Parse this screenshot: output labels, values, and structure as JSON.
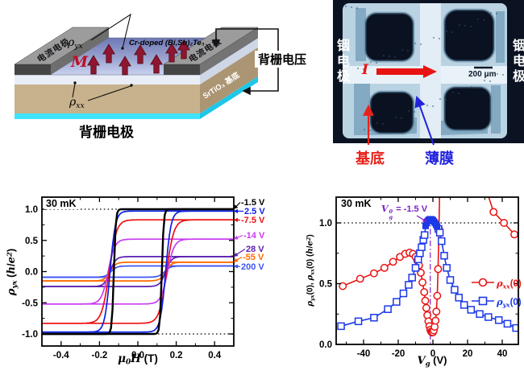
{
  "figure": {
    "background": "#ffffff"
  },
  "panel_schematic": {
    "film_compound_label": "Cr-doped (Bi,Sb)₂Te₃",
    "magnetization_label": "M",
    "magnetization_color": "#c01022",
    "hall_resistivity_parts": [
      [
        "i",
        "ρ"
      ],
      [
        "sub",
        "yx"
      ]
    ],
    "longitudinal_resistivity_parts": [
      [
        "i",
        "ρ"
      ],
      [
        "sub",
        "xx"
      ]
    ],
    "current_electrode_label": "电流电极",
    "substrate_label": "SrTiO₃ 基底",
    "back_gate_electrode_label": "背栅电极",
    "back_gate_voltage_label": "背栅电压"
  },
  "panel_micrograph": {
    "left_electrode_label": "铟电极",
    "right_electrode_label": "铟电极",
    "current_label": "I",
    "current_arrow_color": "#e81414",
    "scale_bar_label": "200 μm",
    "substrate_label": "基底",
    "substrate_label_color": "#e8221a",
    "film_label": "薄膜",
    "film_label_color": "#2222dd"
  },
  "chart_data": [
    {
      "id": "hysteresis-loops",
      "type": "line",
      "title": "30 mK",
      "xlabel_rich": [
        [
          "i",
          "μ"
        ],
        [
          "sub",
          "0"
        ],
        [
          "i",
          "H"
        ],
        [
          "t",
          " (T)"
        ]
      ],
      "ylabel_rich": [
        [
          "i",
          "ρ"
        ],
        [
          "sub",
          "yx"
        ],
        [
          "t",
          " ("
        ],
        [
          "i",
          "h"
        ],
        [
          "t",
          "/"
        ],
        [
          "i",
          "e"
        ],
        [
          "sup",
          "2"
        ],
        [
          "t",
          ")"
        ]
      ],
      "xlim": [
        -0.5,
        0.5
      ],
      "ylim": [
        -1.19,
        1.19
      ],
      "xticks": [
        {
          "v": -0.4,
          "l": "-0.4"
        },
        {
          "v": -0.2,
          "l": "-0.2"
        },
        {
          "v": 0,
          "l": "0.0"
        },
        {
          "v": 0.2,
          "l": "0.2"
        },
        {
          "v": 0.4,
          "l": "0.4"
        }
      ],
      "yticks": [
        {
          "v": -1,
          "l": "-1.0"
        },
        {
          "v": -0.5,
          "l": "-0.5"
        },
        {
          "v": 0,
          "l": "0.0"
        },
        {
          "v": 0.5,
          "l": "0.5"
        },
        {
          "v": 1,
          "l": "1.0"
        }
      ],
      "x_minor": [
        -0.3,
        -0.1,
        0.1,
        0.3
      ],
      "y_minor": [
        -0.75,
        -0.25,
        0.25,
        0.75
      ],
      "reference_lines_y": [
        1.0,
        -1.0
      ],
      "series": [
        {
          "label": "-1.5 V",
          "color": "#000000",
          "saturation_h_e2": 1.0,
          "coercive_field_T": 0.125,
          "transition_width_T": 0.01,
          "line_width": 2.4
        },
        {
          "label": "2.5 V",
          "color": "#0b1fe8",
          "saturation_h_e2": 0.97,
          "coercive_field_T": 0.145,
          "transition_width_T": 0.028,
          "line_width": 1.7
        },
        {
          "label": "-7.5 V",
          "color": "#ee1111",
          "saturation_h_e2": 0.83,
          "coercive_field_T": 0.15,
          "transition_width_T": 0.038,
          "line_width": 1.7
        },
        {
          "label": "-14 V",
          "color": "#c93cf0",
          "saturation_h_e2": 0.52,
          "coercive_field_T": 0.155,
          "transition_width_T": 0.035,
          "line_width": 1.7
        },
        {
          "label": "28 V",
          "color": "#5a1fb0",
          "saturation_h_e2": 0.24,
          "coercive_field_T": 0.145,
          "transition_width_T": 0.03,
          "line_width": 1.7
        },
        {
          "label": "-55 V",
          "color": "#ff6a00",
          "saturation_h_e2": 0.15,
          "coercive_field_T": 0.145,
          "transition_width_T": 0.03,
          "line_width": 1.7
        },
        {
          "label": "200 V",
          "color": "#3c55f5",
          "saturation_h_e2": 0.09,
          "coercive_field_T": 0.14,
          "transition_width_T": 0.03,
          "line_width": 1.7
        }
      ]
    },
    {
      "id": "gate-voltage-dependence",
      "type": "scatter-line",
      "title": "30 mK",
      "xlabel_rich": [
        [
          "i",
          "V"
        ],
        [
          "sub",
          "g"
        ],
        [
          "t",
          " (V)"
        ]
      ],
      "ylabel_rich": [
        [
          "i",
          "ρ"
        ],
        [
          "sub",
          "yx"
        ],
        [
          "t",
          "(0), "
        ],
        [
          "i",
          "ρ"
        ],
        [
          "sub",
          "xx"
        ],
        [
          "t",
          "(0) ("
        ],
        [
          "i",
          "h"
        ],
        [
          "t",
          "/"
        ],
        [
          "i",
          "e"
        ],
        [
          "sup",
          "2"
        ],
        [
          "t",
          ")"
        ]
      ],
      "annotation": {
        "parts": [
          [
            "i",
            "V"
          ],
          [
            "ss",
            "0",
            "g"
          ],
          [
            "t",
            " = -1.5 V"
          ]
        ],
        "color": "#7d1fc9",
        "x_value": -1.5
      },
      "xlim": [
        -55.8,
        49.3
      ],
      "ylim": [
        0,
        1.212
      ],
      "xticks": [
        {
          "v": -40,
          "l": "-40"
        },
        {
          "v": -20,
          "l": "-20"
        },
        {
          "v": 0,
          "l": "0"
        },
        {
          "v": 20,
          "l": "20"
        },
        {
          "v": 40,
          "l": "40"
        }
      ],
      "yticks": [
        {
          "v": 0,
          "l": "0.0"
        },
        {
          "v": 0.5,
          "l": "0.5"
        },
        {
          "v": 1,
          "l": "1.0"
        }
      ],
      "x_minor": [
        -50,
        -30,
        -10,
        10,
        30
      ],
      "y_minor": [
        0.25,
        0.75
      ],
      "reference_lines_y": [
        1.0
      ],
      "vline": {
        "x": -1.5,
        "color": "#7d1fc9"
      },
      "series": [
        {
          "label": "ρxx(0)",
          "label_rich": [
            [
              "i",
              "ρ"
            ],
            [
              "sub",
              "xx"
            ],
            [
              "t",
              "(0)"
            ]
          ],
          "color": "#e81414",
          "marker": "circle",
          "points": [
            [
              -52,
              0.48
            ],
            [
              -42,
              0.54
            ],
            [
              -34,
              0.585
            ],
            [
              -28,
              0.63
            ],
            [
              -23,
              0.68
            ],
            [
              -19,
              0.72
            ],
            [
              -16,
              0.745
            ],
            [
              -13.5,
              0.755
            ],
            [
              -11.5,
              0.745
            ],
            [
              -10,
              0.72
            ],
            [
              -9,
              0.69
            ],
            [
              -8,
              0.65
            ],
            [
              -7,
              0.59
            ],
            [
              -6,
              0.51
            ],
            [
              -5,
              0.43
            ],
            [
              -4.4,
              0.36
            ],
            [
              -3.8,
              0.3
            ],
            [
              -3.2,
              0.24
            ],
            [
              -2.6,
              0.19
            ],
            [
              -2,
              0.15
            ],
            [
              -1.5,
              0.12
            ],
            [
              -1,
              0.105
            ],
            [
              -0.5,
              0.098
            ],
            [
              0,
              0.1
            ],
            [
              0.5,
              0.115
            ],
            [
              1,
              0.145
            ],
            [
              1.5,
              0.195
            ],
            [
              2,
              0.27
            ],
            [
              2.5,
              0.4
            ],
            [
              3,
              0.62
            ],
            [
              3.5,
              0.95
            ],
            [
              4,
              1.35
            ],
            [
              29,
              1.35
            ],
            [
              35,
              1.09
            ],
            [
              41,
              1.0
            ],
            [
              47,
              0.905
            ]
          ]
        },
        {
          "label": "ρyx(0)",
          "label_rich": [
            [
              "i",
              "ρ"
            ],
            [
              "sub",
              "yx"
            ],
            [
              "t",
              "(0)"
            ]
          ],
          "color": "#1c39e8",
          "marker": "square",
          "points": [
            [
              -53,
              0.15
            ],
            [
              -43,
              0.19
            ],
            [
              -34,
              0.22
            ],
            [
              -26,
              0.29
            ],
            [
              -21,
              0.35
            ],
            [
              -17,
              0.42
            ],
            [
              -14,
              0.49
            ],
            [
              -12,
              0.55
            ],
            [
              -10,
              0.63
            ],
            [
              -8.5,
              0.7
            ],
            [
              -7.5,
              0.75
            ],
            [
              -6.5,
              0.8
            ],
            [
              -5.5,
              0.86
            ],
            [
              -4.8,
              0.9
            ],
            [
              3.2,
              0.95
            ],
            [
              4,
              0.92
            ],
            [
              5,
              0.85
            ],
            [
              6.5,
              0.73
            ],
            [
              8,
              0.63
            ],
            [
              10,
              0.53
            ],
            [
              12.5,
              0.45
            ],
            [
              15,
              0.385
            ],
            [
              18,
              0.325
            ],
            [
              22,
              0.285
            ],
            [
              27,
              0.25
            ],
            [
              32,
              0.225
            ],
            [
              38,
              0.2
            ],
            [
              43,
              0.17
            ],
            [
              48,
              0.135
            ]
          ],
          "cluster_points": [
            [
              -4.2,
              0.975
            ],
            [
              -3.6,
              1.0
            ],
            [
              -3,
              1.015
            ],
            [
              -2.4,
              1.025
            ],
            [
              -1.8,
              1.03
            ],
            [
              -1.2,
              1.03
            ],
            [
              -0.6,
              1.028
            ],
            [
              0,
              1.022
            ],
            [
              0.6,
              1.012
            ],
            [
              1.2,
              1.0
            ],
            [
              1.8,
              0.985
            ],
            [
              2.4,
              0.97
            ]
          ]
        }
      ]
    }
  ]
}
